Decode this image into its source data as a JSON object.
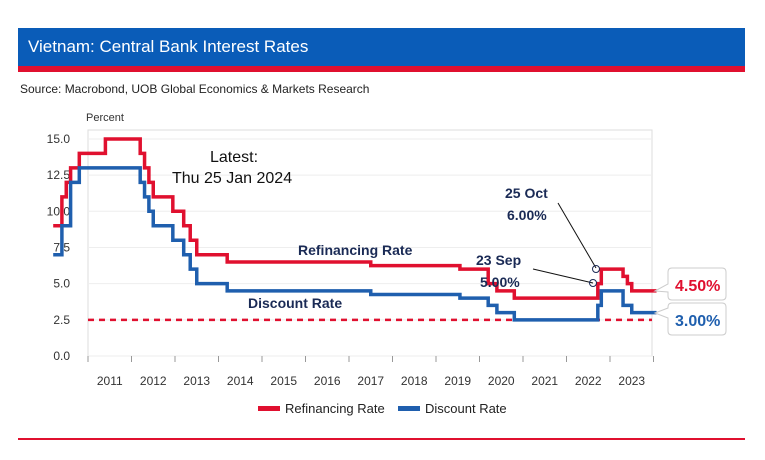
{
  "header": {
    "title": "Vietnam: Central Bank Interest Rates",
    "source": "Source: Macrobond, UOB Global Economics & Markets Research"
  },
  "chart_data": {
    "type": "line",
    "ylabel": "Percent",
    "ylim": [
      0,
      15
    ],
    "yticks": [
      "0.0",
      "2.5",
      "5.0",
      "7.5",
      "10.0",
      "12.5",
      "15.0"
    ],
    "xticks": [
      "2011",
      "2012",
      "2013",
      "2014",
      "2015",
      "2016",
      "2017",
      "2018",
      "2019",
      "2020",
      "2021",
      "2022",
      "2023"
    ],
    "series": [
      {
        "name": "Refinancing Rate",
        "color": "#e0102f",
        "steps": [
          [
            2010.2,
            9
          ],
          [
            2010.4,
            11
          ],
          [
            2010.5,
            12
          ],
          [
            2010.6,
            13
          ],
          [
            2010.8,
            14
          ],
          [
            2011.3,
            14
          ],
          [
            2011.4,
            15
          ],
          [
            2011.9,
            15
          ],
          [
            2012.2,
            14
          ],
          [
            2012.3,
            13
          ],
          [
            2012.4,
            12
          ],
          [
            2012.5,
            11
          ],
          [
            2012.95,
            10
          ],
          [
            2013.2,
            9
          ],
          [
            2013.35,
            8
          ],
          [
            2013.5,
            7
          ],
          [
            2014.2,
            6.5
          ],
          [
            2017.5,
            6.25
          ],
          [
            2019.55,
            6
          ],
          [
            2020.2,
            5
          ],
          [
            2020.4,
            4.5
          ],
          [
            2020.8,
            4
          ],
          [
            2022.72,
            5
          ],
          [
            2022.8,
            6
          ],
          [
            2023.3,
            5.5
          ],
          [
            2023.4,
            5
          ],
          [
            2023.5,
            4.5
          ],
          [
            2024.07,
            4.5
          ]
        ]
      },
      {
        "name": "Discount Rate",
        "color": "#1f5fae",
        "steps": [
          [
            2010.2,
            7
          ],
          [
            2010.4,
            9
          ],
          [
            2010.6,
            12
          ],
          [
            2010.8,
            13
          ],
          [
            2011.9,
            13
          ],
          [
            2012.2,
            12
          ],
          [
            2012.3,
            11
          ],
          [
            2012.4,
            10
          ],
          [
            2012.5,
            9
          ],
          [
            2012.95,
            8
          ],
          [
            2013.2,
            7
          ],
          [
            2013.35,
            6
          ],
          [
            2013.5,
            5
          ],
          [
            2014.2,
            4.5
          ],
          [
            2017.5,
            4.25
          ],
          [
            2019.55,
            4
          ],
          [
            2020.2,
            3.5
          ],
          [
            2020.4,
            3
          ],
          [
            2020.8,
            2.5
          ],
          [
            2022.72,
            3.5
          ],
          [
            2022.8,
            4.5
          ],
          [
            2023.3,
            3.5
          ],
          [
            2023.5,
            3
          ],
          [
            2024.07,
            3
          ]
        ]
      }
    ],
    "reference_line": {
      "value": 2.5,
      "color": "#e0102f",
      "style": "dashed"
    },
    "annotations": {
      "latest": "Latest:",
      "latest_date": "Thu 25 Jan 2024",
      "refi_label": "Refinancing Rate",
      "disc_label": "Discount Rate",
      "oct_date": "25 Oct",
      "oct_value": "6.00%",
      "sep_date": "23 Sep",
      "sep_value": "5.00%",
      "refi_end": "4.50%",
      "disc_end": "3.00%"
    },
    "legend": [
      "Refinancing Rate",
      "Discount Rate"
    ],
    "legend_position": "bottom"
  }
}
